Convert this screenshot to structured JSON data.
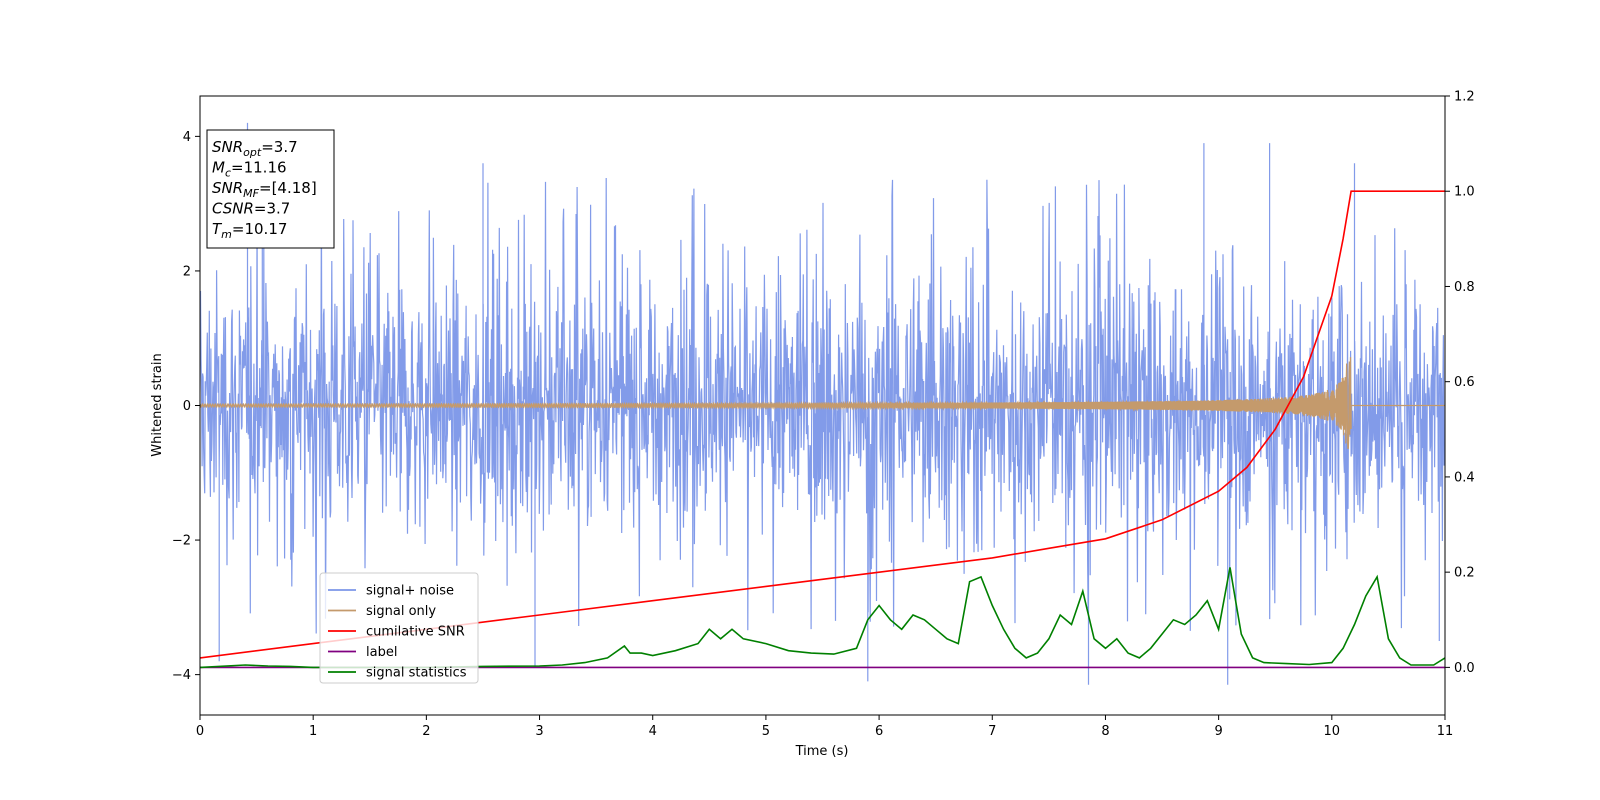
{
  "chart_data": {
    "type": "line",
    "xlabel": "Time (s)",
    "ylabel": "Whitened strain",
    "xlim": [
      0,
      11
    ],
    "ylim": [
      -4.6,
      4.6
    ],
    "y2lim": [
      -0.1,
      1.2
    ],
    "xticks": [
      0,
      1,
      2,
      3,
      4,
      5,
      6,
      7,
      8,
      9,
      10,
      11
    ],
    "yticks": [
      -4,
      -2,
      0,
      2,
      4
    ],
    "y2ticks": [
      0.0,
      0.2,
      0.4,
      0.6,
      0.8,
      1.0,
      1.2
    ],
    "legend": {
      "placement": "lower-left"
    },
    "info_box": [
      {
        "base": "SNR",
        "sub": "opt",
        "rest": "=3.7"
      },
      {
        "base": "M",
        "sub": "c",
        "rest": "=11.16"
      },
      {
        "base": "SNR",
        "sub": "MF",
        "rest": "=[4.18]"
      },
      {
        "base": "CSNR",
        "sub": "",
        "rest": "=3.7"
      },
      {
        "base": "T",
        "sub": "m",
        "rest": "=10.17"
      }
    ],
    "series": [
      {
        "name": "signal+ noise",
        "color": "#7b96e8",
        "axis": "left",
        "kind": "noise",
        "x_range": [
          0,
          11
        ],
        "typical_range": [
          -2.4,
          2.4
        ],
        "peaks": [
          [
            0.42,
            4.2
          ],
          [
            0.55,
            3.9
          ],
          [
            2.5,
            3.6
          ],
          [
            8.87,
            3.9
          ],
          [
            9.45,
            3.9
          ],
          [
            10.2,
            3.6
          ],
          [
            0.17,
            -3.8
          ],
          [
            2.96,
            -3.9
          ],
          [
            5.9,
            -4.1
          ],
          [
            7.85,
            -4.15
          ],
          [
            9.08,
            -4.15
          ],
          [
            10.95,
            -3.5
          ]
        ]
      },
      {
        "name": "signal only",
        "color": "#c49a6c",
        "axis": "left",
        "kind": "chirp",
        "t_merge": 10.17,
        "amplitude_at_merge": 0.72,
        "start_amplitude": 0.02
      },
      {
        "name": "cumilative SNR",
        "color": "#ff0000",
        "axis": "right",
        "x": [
          0,
          1,
          2,
          3,
          4,
          5,
          6,
          7,
          7.5,
          8,
          8.5,
          9,
          9.25,
          9.5,
          9.75,
          10,
          10.1,
          10.17,
          10.17,
          11
        ],
        "values": [
          0.02,
          0.05,
          0.08,
          0.11,
          0.14,
          0.17,
          0.2,
          0.23,
          0.25,
          0.27,
          0.31,
          0.37,
          0.42,
          0.5,
          0.61,
          0.78,
          0.9,
          1.0,
          1.0,
          1.0
        ]
      },
      {
        "name": "label",
        "color": "#800080",
        "axis": "right",
        "x": [
          0,
          11
        ],
        "values": [
          0.0,
          0.0
        ]
      },
      {
        "name": "signal statistics",
        "color": "#008000",
        "axis": "right",
        "x": [
          0,
          0.4,
          0.6,
          0.8,
          1,
          2,
          2.5,
          3,
          3.2,
          3.4,
          3.6,
          3.75,
          3.8,
          3.9,
          4,
          4.2,
          4.4,
          4.5,
          4.6,
          4.7,
          4.8,
          5,
          5.2,
          5.4,
          5.6,
          5.8,
          5.9,
          6,
          6.1,
          6.2,
          6.3,
          6.4,
          6.5,
          6.6,
          6.7,
          6.8,
          6.9,
          7,
          7.1,
          7.2,
          7.3,
          7.4,
          7.5,
          7.6,
          7.7,
          7.8,
          7.9,
          8,
          8.1,
          8.2,
          8.3,
          8.4,
          8.5,
          8.6,
          8.7,
          8.8,
          8.9,
          9,
          9.1,
          9.15,
          9.2,
          9.3,
          9.4,
          9.6,
          9.8,
          10,
          10.1,
          10.2,
          10.3,
          10.4,
          10.5,
          10.6,
          10.7,
          10.9,
          11
        ],
        "values": [
          0.0,
          0.005,
          0.003,
          0.002,
          0.0,
          0.0,
          0.002,
          0.003,
          0.005,
          0.01,
          0.02,
          0.045,
          0.03,
          0.03,
          0.025,
          0.035,
          0.05,
          0.08,
          0.06,
          0.08,
          0.06,
          0.05,
          0.035,
          0.03,
          0.028,
          0.04,
          0.1,
          0.13,
          0.1,
          0.08,
          0.11,
          0.1,
          0.08,
          0.06,
          0.05,
          0.18,
          0.19,
          0.13,
          0.08,
          0.04,
          0.02,
          0.03,
          0.06,
          0.11,
          0.09,
          0.16,
          0.06,
          0.04,
          0.06,
          0.03,
          0.02,
          0.04,
          0.07,
          0.1,
          0.09,
          0.11,
          0.14,
          0.08,
          0.21,
          0.14,
          0.07,
          0.02,
          0.01,
          0.008,
          0.006,
          0.01,
          0.04,
          0.09,
          0.15,
          0.19,
          0.06,
          0.02,
          0.005,
          0.005,
          0.02
        ]
      }
    ]
  }
}
